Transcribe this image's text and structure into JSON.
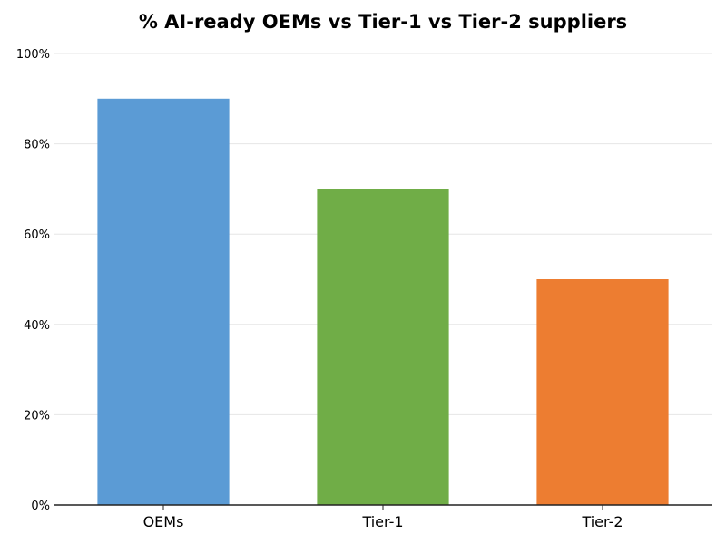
{
  "chart_data": {
    "type": "bar",
    "title": "% AI-ready OEMs vs Tier-1 vs Tier-2 suppliers",
    "xlabel": "",
    "ylabel": "",
    "categories": [
      "OEMs",
      "Tier-1",
      "Tier-2"
    ],
    "values": [
      90,
      70,
      50
    ],
    "colors": [
      "#5B9BD5",
      "#70AD47",
      "#ED7D31"
    ],
    "ylim": [
      0,
      100
    ],
    "yticks": [
      0,
      20,
      40,
      60,
      80,
      100
    ],
    "ytick_labels": [
      "0%",
      "20%",
      "40%",
      "60%",
      "80%",
      "100%"
    ],
    "grid": "horizontal",
    "legend": "none"
  }
}
